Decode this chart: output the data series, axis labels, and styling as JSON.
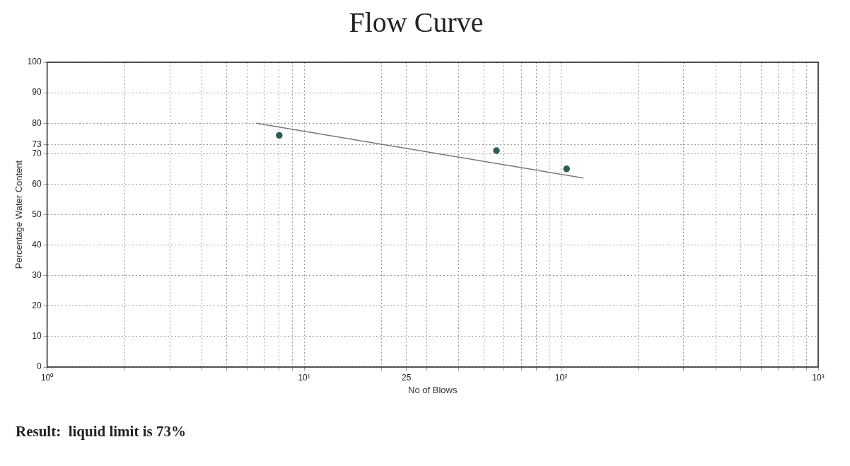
{
  "chart_data": {
    "type": "scatter",
    "title": "Flow Curve",
    "xlabel": "No of Blows",
    "ylabel": "Percentage Water Content",
    "log": "x",
    "grid": true,
    "marker": "circle",
    "xlim": [
      1,
      1000
    ],
    "ylim": [
      0,
      100
    ],
    "xticks": [
      {
        "value": 1,
        "label": "10⁰"
      },
      {
        "value": 2,
        "label": null
      },
      {
        "value": 3,
        "label": null
      },
      {
        "value": 4,
        "label": null
      },
      {
        "value": 5,
        "label": null
      },
      {
        "value": 6,
        "label": null
      },
      {
        "value": 7,
        "label": null
      },
      {
        "value": 8,
        "label": null
      },
      {
        "value": 9,
        "label": null
      },
      {
        "value": 10,
        "label": "10¹"
      },
      {
        "value": 20,
        "label": null
      },
      25,
      {
        "value": 30,
        "label": null
      },
      {
        "value": 40,
        "label": null
      },
      {
        "value": 50,
        "label": null
      },
      {
        "value": 60,
        "label": null
      },
      {
        "value": 70,
        "label": null
      },
      {
        "value": 80,
        "label": null
      },
      {
        "value": 90,
        "label": null
      },
      {
        "value": 100,
        "label": "10²"
      },
      {
        "value": 200,
        "label": null
      },
      {
        "value": 300,
        "label": null
      },
      {
        "value": 400,
        "label": null
      },
      {
        "value": 500,
        "label": null
      },
      {
        "value": 600,
        "label": null
      },
      {
        "value": 700,
        "label": null
      },
      {
        "value": 800,
        "label": null
      },
      {
        "value": 900,
        "label": null
      },
      {
        "value": 1000,
        "label": "10³"
      }
    ],
    "yticks": [
      0,
      10,
      20,
      30,
      40,
      50,
      60,
      70,
      73,
      80,
      90,
      100
    ],
    "series": [
      {
        "color": "#2f5d5d",
        "x": [
          8,
          56,
          105
        ],
        "values": [
          76,
          71,
          65
        ]
      },
      {
        "type": "line",
        "color": "#777777",
        "line_style": "solid",
        "marker": "none",
        "x": [
          6.5,
          122
        ],
        "values": [
          80,
          62
        ]
      }
    ],
    "annotations": [
      "Result:  liquid limit is 73%"
    ]
  }
}
